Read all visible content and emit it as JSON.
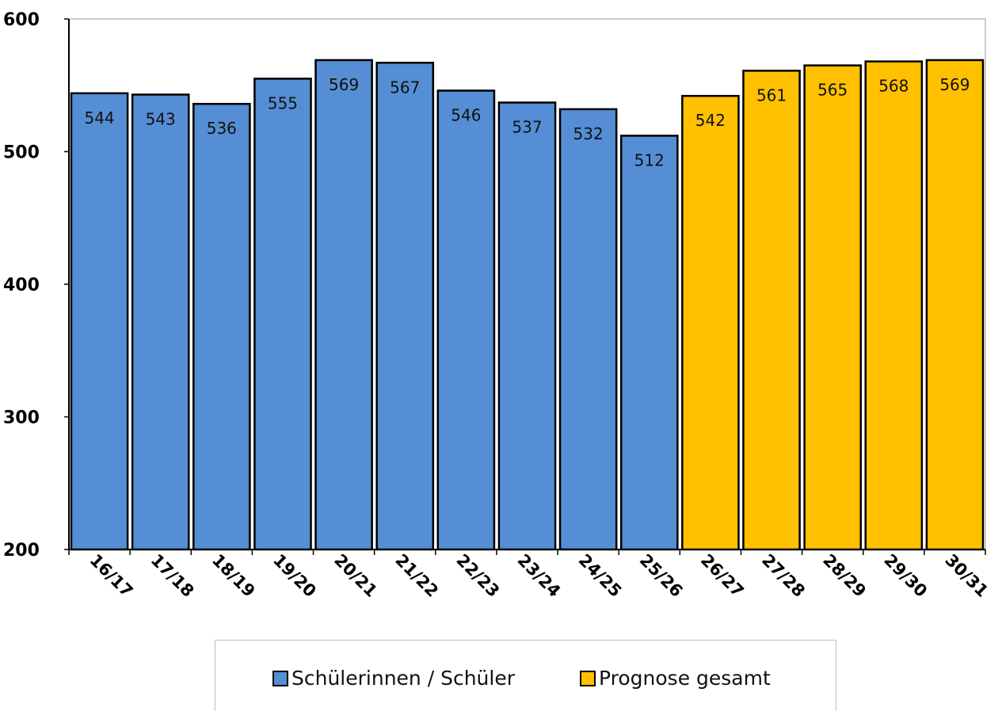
{
  "chart_data": {
    "type": "bar",
    "categories": [
      "16/17",
      "17/18",
      "18/19",
      "19/20",
      "20/21",
      "21/22",
      "22/23",
      "23/24",
      "24/25",
      "25/26",
      "26/27",
      "27/28",
      "28/29",
      "29/30",
      "30/31"
    ],
    "values": [
      544,
      543,
      536,
      555,
      569,
      567,
      546,
      537,
      532,
      512,
      542,
      561,
      565,
      568,
      569
    ],
    "series": [
      {
        "name": "Schülerinnen / Schüler",
        "color": "#558ed5",
        "range": [
          0,
          9
        ]
      },
      {
        "name": "Prognose gesamt",
        "color": "#ffc000",
        "range": [
          10,
          14
        ]
      }
    ],
    "ylim": [
      200,
      600
    ],
    "yticks": [
      "200",
      "300",
      "400",
      "500",
      "600"
    ],
    "grid": false,
    "legend_position": "bottom"
  }
}
